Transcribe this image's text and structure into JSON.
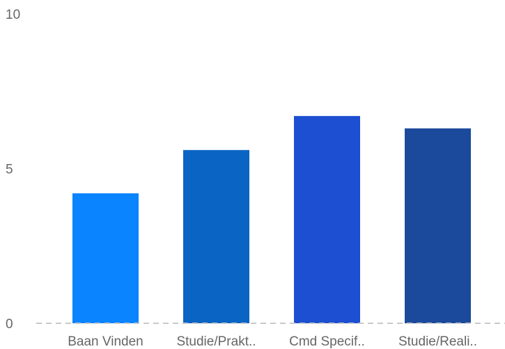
{
  "chart_data": {
    "type": "bar",
    "title": "",
    "xlabel": "",
    "ylabel": "",
    "categories": [
      "Baan Vinden",
      "Studie/Prakt..",
      "Cmd Specif..",
      "Studie/Reali.."
    ],
    "values": [
      4.2,
      5.6,
      6.7,
      6.3
    ],
    "ylim": [
      0,
      10
    ],
    "yticks": [
      0,
      5,
      10
    ],
    "ytick_labels": [
      "0",
      "5",
      "10"
    ],
    "grid": false,
    "baseline": "dashed",
    "legend": "none",
    "colors": [
      "#0a84ff",
      "#0a64c4",
      "#1c4fd1",
      "#1b4a9c"
    ],
    "baseline_color": "#c8c8c8"
  }
}
